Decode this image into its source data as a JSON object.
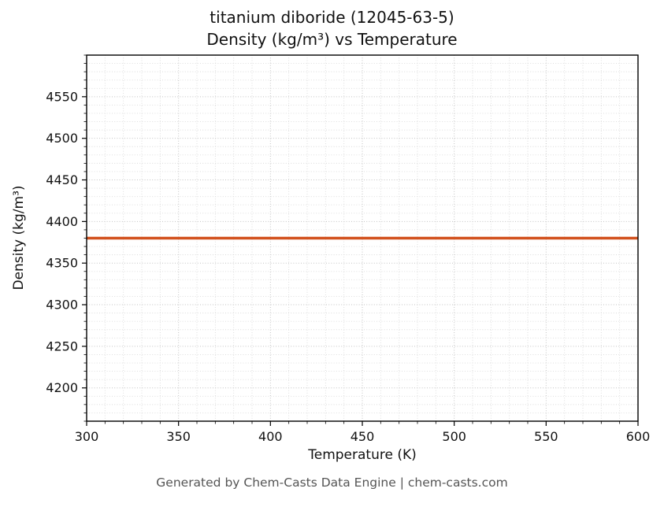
{
  "chart_data": {
    "type": "line",
    "title_line1": "titanium diboride (12045-63-5)",
    "title_line2": "Density (kg/m³) vs Temperature",
    "xlabel": "Temperature (K)",
    "ylabel": "Density (kg/m³)",
    "xlim": [
      300,
      600
    ],
    "ylim": [
      4160,
      4600
    ],
    "x_ticks": [
      300,
      350,
      400,
      450,
      500,
      550,
      600
    ],
    "y_ticks": [
      4200,
      4250,
      4300,
      4350,
      4400,
      4450,
      4500,
      4550
    ],
    "x_minor_step": 10,
    "y_minor_step": 10,
    "grid": true,
    "legend_position": "none",
    "colors": {
      "series": "#d2521e",
      "major_grid": "#c3c3c3",
      "minor_grid": "#dadada",
      "axis": "#000000"
    },
    "series": [
      {
        "name": "density",
        "x": [
          300,
          600
        ],
        "y": [
          4380,
          4380
        ],
        "color": "#d2521e",
        "linewidth": 3.5
      }
    ]
  },
  "footer": {
    "text": "Generated by Chem-Casts Data Engine | chem-casts.com"
  }
}
